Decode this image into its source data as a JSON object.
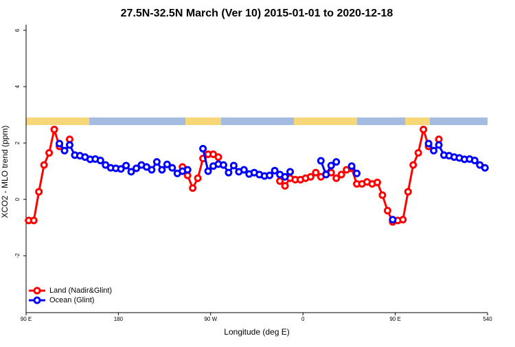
{
  "chart_data": {
    "type": "line",
    "title": "27.5N-32.5N March (Ver 10)   2015-01-01 to 2020-12-18",
    "x_label": "Longitude (deg E)",
    "y_label": "XCO2 - MLO trend (ppm)",
    "xlim": [
      90,
      540
    ],
    "xticks": [
      {
        "value": 90,
        "label": "90 E"
      },
      180,
      {
        "value": 270,
        "label": "90 W"
      },
      {
        "value": 360,
        "label": "0"
      },
      {
        "value": 450,
        "label": "90 E"
      },
      540
    ],
    "ylim": [
      -4.02,
      6.1
    ],
    "yticks": [
      -2,
      0,
      2,
      4,
      6
    ],
    "legend": "bottomleft",
    "x": [
      92.5,
      97.5,
      102.5,
      107.5,
      112.5,
      117.5,
      122.5,
      127.5,
      132.5,
      137.5,
      142.5,
      147.5,
      152.5,
      157.5,
      162.5,
      167.5,
      172.5,
      177.5,
      182.5,
      187.5,
      192.5,
      197.5,
      202.5,
      207.5,
      212.5,
      217.5,
      222.5,
      227.5,
      232.5,
      237.5,
      242.5,
      247.5,
      252.5,
      257.5,
      262.5,
      267.5,
      272.5,
      277.5,
      282.5,
      287.5,
      292.5,
      297.5,
      302.5,
      307.5,
      312.5,
      317.5,
      322.5,
      327.5,
      332.5,
      337.5,
      342.5,
      347.5,
      352.5,
      357.5,
      362.5,
      367.5,
      372.5,
      377.5,
      382.5,
      387.5,
      392.5,
      397.5,
      402.5,
      407.5,
      412.5,
      417.5,
      422.5,
      427.5,
      432.5,
      437.5,
      442.5,
      447.5,
      452.5,
      457.5,
      462.5,
      467.5,
      472.5,
      477.5,
      482.5,
      487.5,
      492.5,
      497.5,
      502.5,
      507.5,
      512.5,
      517.5,
      522.5,
      527.5,
      532.5,
      537.5
    ],
    "series": [
      {
        "name": "Land (Nadir&Glint)",
        "color": "#ff0000",
        "values": [
          -0.75,
          -0.75,
          0.27,
          1.22,
          1.65,
          2.48,
          1.88,
          null,
          2.13,
          null,
          null,
          null,
          null,
          null,
          null,
          null,
          null,
          null,
          null,
          null,
          null,
          null,
          null,
          null,
          null,
          null,
          null,
          null,
          null,
          null,
          1.15,
          0.85,
          0.4,
          0.75,
          1.45,
          1.6,
          1.6,
          1.5,
          null,
          null,
          null,
          null,
          null,
          null,
          null,
          null,
          null,
          null,
          null,
          0.65,
          0.48,
          0.75,
          0.7,
          0.7,
          0.75,
          0.8,
          0.95,
          0.8,
          0.9,
          0.95,
          0.75,
          0.88,
          1.05,
          1.1,
          0.55,
          0.55,
          0.62,
          0.55,
          0.6,
          0.15,
          -0.4,
          -0.8,
          -0.75,
          -0.72,
          0.27,
          1.22,
          1.65,
          2.48,
          1.88,
          null,
          2.13,
          null,
          null,
          null,
          null,
          null,
          null,
          null,
          null,
          null
        ]
      },
      {
        "name": "Ocean (Glint)",
        "color": "#0000ff",
        "values": [
          null,
          null,
          null,
          null,
          null,
          null,
          1.98,
          1.73,
          1.93,
          1.57,
          1.55,
          1.5,
          1.42,
          1.43,
          1.38,
          1.22,
          1.12,
          1.1,
          1.08,
          1.2,
          0.98,
          1.1,
          1.22,
          1.15,
          1.05,
          1.33,
          1.05,
          1.24,
          1.12,
          0.92,
          1.0,
          1.05,
          null,
          null,
          1.8,
          1.0,
          1.18,
          1.25,
          1.22,
          0.95,
          1.2,
          0.98,
          1.05,
          0.9,
          0.95,
          0.88,
          0.83,
          0.85,
          1.02,
          0.88,
          0.8,
          0.98,
          null,
          null,
          null,
          null,
          null,
          1.37,
          0.88,
          1.2,
          1.33,
          null,
          null,
          1.18,
          0.92,
          null,
          null,
          null,
          null,
          null,
          null,
          -0.72,
          null,
          null,
          null,
          null,
          null,
          null,
          1.98,
          1.73,
          1.93,
          1.57,
          1.55,
          1.5,
          1.47,
          1.42,
          1.43,
          1.38,
          1.22,
          1.12
        ]
      }
    ]
  }
}
